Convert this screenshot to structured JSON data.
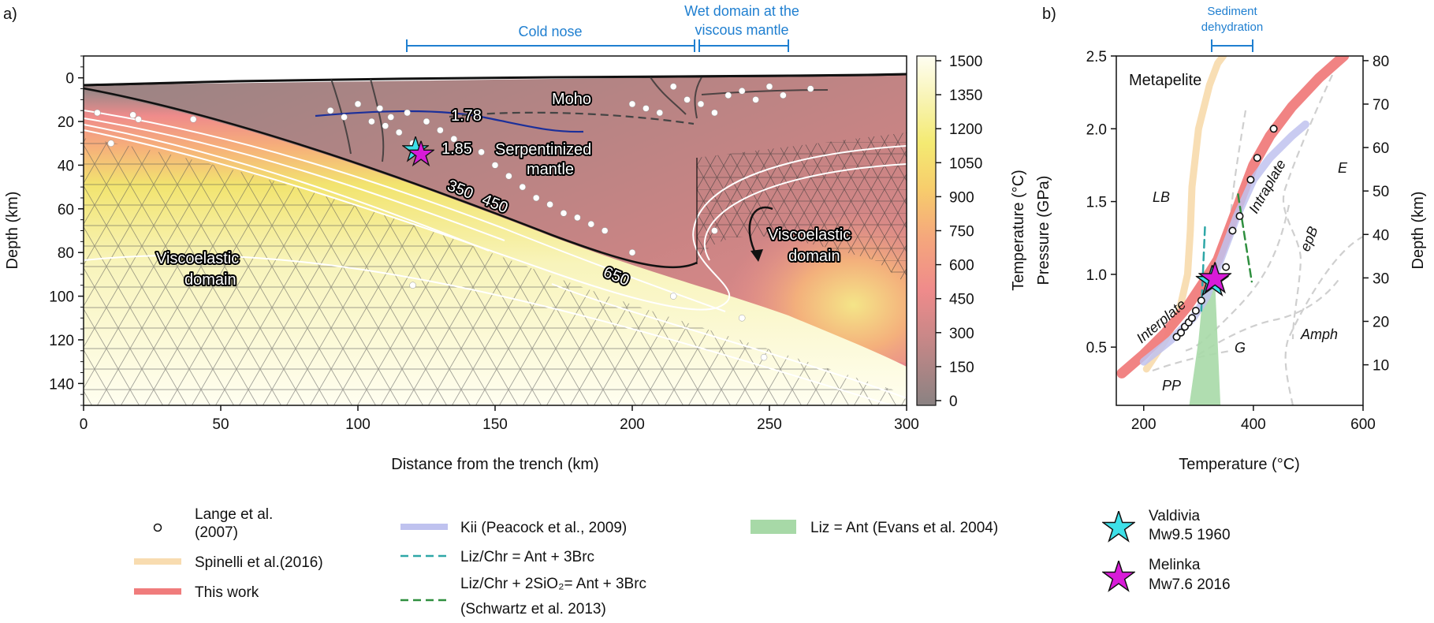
{
  "chart_data": [
    {
      "panel_label": "a)",
      "type": "heatmap",
      "xlabel": "Distance from the trench (km)",
      "ylabel": "Depth (km)",
      "xlim": [
        0,
        300
      ],
      "ylim": [
        150,
        -10
      ],
      "xticks": [
        "0",
        "50",
        "100",
        "150",
        "200",
        "250",
        "300"
      ],
      "yticks": [
        "0",
        "20",
        "40",
        "60",
        "80",
        "100",
        "120",
        "140"
      ],
      "colorbar": {
        "label": "Temperature (°C)",
        "range": [
          0,
          1500
        ],
        "ticks": [
          "0",
          "150",
          "300",
          "450",
          "600",
          "750",
          "900",
          "1050",
          "1200",
          "1350",
          "1500"
        ],
        "colors": [
          "#8d8484",
          "#c98a8a",
          "#ef8a8a",
          "#f4a57e",
          "#f7c96e",
          "#f3e870",
          "#f7f3b0",
          "#fffef0"
        ]
      },
      "top_brackets": [
        {
          "label": "Cold nose",
          "x": [
            118,
            223
          ]
        },
        {
          "label_line1": "Wet domain at the",
          "label_line2": "viscous mantle",
          "x": [
            223,
            257
          ]
        }
      ],
      "isotherms": [
        "1.78",
        "1.85",
        "350",
        "450",
        "650"
      ],
      "region_labels": {
        "moho": "Moho",
        "serpentinized_1": "Serpentinized",
        "serpentinized_2": "mantle",
        "visco_left_1": "Viscoelastic",
        "visco_left_2": "domain",
        "visco_right_1": "Viscoelastic",
        "visco_right_2": "domain"
      },
      "slab_top": {
        "x": [
          0,
          30,
          60,
          90,
          120,
          150,
          180,
          210,
          223
        ],
        "depth": [
          5,
          9,
          14,
          21,
          30,
          42,
          56,
          72,
          85
        ]
      },
      "moho_line": {
        "x": [
          85,
          110,
          140,
          187
        ],
        "depth": [
          17,
          16,
          15,
          23
        ]
      },
      "seismicity_approx": {
        "x": [
          5,
          10,
          18,
          20,
          40,
          90,
          95,
          100,
          105,
          108,
          110,
          112,
          115,
          118,
          120,
          125,
          130,
          135,
          140,
          145,
          150,
          155,
          160,
          165,
          170,
          175,
          180,
          185,
          190,
          200,
          205,
          210,
          215,
          220,
          225,
          230,
          235,
          240,
          245,
          250,
          255,
          265,
          215,
          200,
          120,
          230,
          240,
          248
        ],
        "depth": [
          16,
          30,
          17,
          19,
          19,
          15,
          18,
          12,
          20,
          14,
          22,
          18,
          25,
          16,
          30,
          20,
          24,
          28,
          32,
          34,
          40,
          45,
          50,
          55,
          58,
          62,
          64,
          67,
          70,
          12,
          14,
          16,
          4,
          10,
          12,
          16,
          8,
          6,
          10,
          4,
          8,
          5,
          100,
          80,
          95,
          70,
          110,
          128
        ]
      },
      "stars": [
        {
          "name": "Valdivia",
          "x": 121,
          "depth": 33,
          "color": "#3ee0e8"
        },
        {
          "name": "Melinka",
          "x": 123,
          "depth": 35,
          "color": "#d81bd8"
        }
      ]
    },
    {
      "panel_label": "b)",
      "type": "line",
      "xlabel": "Temperature (°C)",
      "ylabel": "Pressure (GPa)",
      "ylabel_right": "Depth (km)",
      "xlim": [
        150,
        600
      ],
      "ylim": [
        0.1,
        2.5
      ],
      "xticks": [
        "200",
        "400",
        "600"
      ],
      "yticks": [
        "0.5",
        "1.0",
        "1.5",
        "2.0",
        "2.5"
      ],
      "right_ticks": [
        "10",
        "20",
        "30",
        "40",
        "50",
        "60",
        "70",
        "80"
      ],
      "top_bracket": {
        "label_line1": "Sediment",
        "label_line2": "dehydration",
        "x": [
          328,
          398
        ]
      },
      "field_labels": {
        "metapelite": "Metapelite",
        "lb": "LB",
        "e": "E",
        "epb": "epB",
        "g": "G",
        "amph": "Amph",
        "pp": "PP",
        "interplate": "Interplate",
        "intraplate": "Intraplate"
      },
      "series": [
        {
          "name": "Spinelli et al.(2016)",
          "color": "#f8dcb0",
          "x": [
            205,
            240,
            265,
            280,
            285,
            288,
            300,
            320,
            335,
            345
          ],
          "y": [
            0.35,
            0.55,
            0.75,
            1.0,
            1.3,
            1.6,
            2.0,
            2.3,
            2.45,
            2.5
          ]
        },
        {
          "name": "This work",
          "color": "#f07c7c",
          "x": [
            160,
            200,
            240,
            280,
            310,
            335,
            355,
            375,
            400,
            430,
            470,
            520,
            565
          ],
          "y": [
            0.32,
            0.45,
            0.6,
            0.78,
            0.95,
            1.1,
            1.3,
            1.5,
            1.75,
            1.95,
            2.15,
            2.35,
            2.5
          ]
        },
        {
          "name": "Kii (Peacock et al., 2009)",
          "color": "#bfc2ef",
          "x": [
            200,
            250,
            290,
            315,
            340,
            370,
            400,
            430,
            470,
            495
          ],
          "y": [
            0.4,
            0.55,
            0.7,
            0.85,
            1.1,
            1.4,
            1.65,
            1.8,
            1.95,
            2.03
          ]
        },
        {
          "name": "Liz/Chr = Ant + 3Brc",
          "color": "#2ea7a7",
          "x": [
            305,
            312
          ],
          "y": [
            0.75,
            1.35
          ]
        },
        {
          "name": "Liz/Chr + 2SiO2= Ant + 3Brc (Schwartz et al. 2013)",
          "color": "#2f8f3f",
          "x": [
            372,
            397
          ],
          "y": [
            1.55,
            0.95
          ]
        },
        {
          "name": "Liz = Ant (Evans et al. 2004)",
          "color": "#8ed08e",
          "x": [
            283,
            300,
            310,
            330,
            340,
            320
          ],
          "y": [
            0.1,
            0.55,
            0.95,
            0.95,
            0.1,
            0.1
          ]
        }
      ],
      "lange_points": {
        "name": "Lange et al. (2007)",
        "x": [
          260,
          268,
          275,
          282,
          288,
          295,
          305,
          320,
          350,
          362,
          375,
          395,
          407,
          437
        ],
        "y": [
          0.57,
          0.6,
          0.64,
          0.67,
          0.7,
          0.75,
          0.82,
          0.95,
          1.05,
          1.3,
          1.4,
          1.65,
          1.8,
          2.0
        ]
      },
      "stars": [
        {
          "name": "Valdivia",
          "x": 325,
          "y": 0.95,
          "color": "#3ee0e8"
        },
        {
          "name": "Melinka",
          "x": 330,
          "y": 0.97,
          "color": "#d81bd8"
        }
      ]
    }
  ],
  "legend": {
    "lange_1": "Lange et al.",
    "lange_2": "(2007)",
    "spinelli": "Spinelli et al.(2016)",
    "this_work": "This work",
    "kii": "Kii (Peacock et al., 2009)",
    "lizchr": "Liz/Chr = Ant + 3Brc",
    "lizsio_1": "Liz/Chr + 2SiO₂= Ant + 3Brc",
    "lizsio_2": "(Schwartz et al. 2013)",
    "lizant": "Liz = Ant (Evans et al. 2004)",
    "valdivia_1": "Valdivia",
    "valdivia_2": "Mw9.5 1960",
    "melinka_1": "Melinka",
    "melinka_2": "Mw7.6 2016"
  }
}
